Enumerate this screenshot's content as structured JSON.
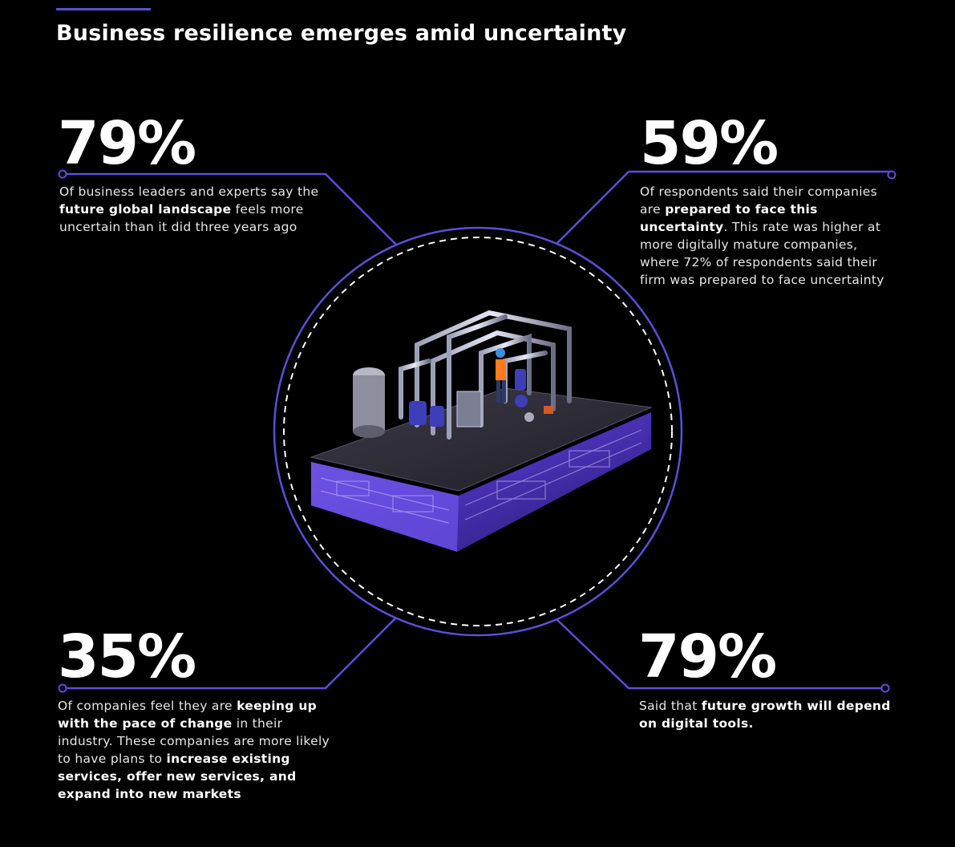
{
  "title": "Business resilience emerges amid uncertainty",
  "colors": {
    "accent": "#5b4fd6",
    "background": "#000000",
    "text": "#ffffff"
  },
  "stats": [
    {
      "value": "79%",
      "parts": [
        {
          "t": "Of business leaders and experts say the ",
          "b": false
        },
        {
          "t": "future global landscape",
          "b": true
        },
        {
          "t": " feels more uncertain than it did three years ago",
          "b": false
        }
      ]
    },
    {
      "value": "59%",
      "parts": [
        {
          "t": "Of respondents said their companies are ",
          "b": false
        },
        {
          "t": "prepared to face this uncertainty",
          "b": true
        },
        {
          "t": ". This rate was higher at more digitally mature companies, where 72% of respondents said their firm was prepared to face uncertainty",
          "b": false
        }
      ]
    },
    {
      "value": "35%",
      "parts": [
        {
          "t": "Of companies feel they are ",
          "b": false
        },
        {
          "t": "keeping up with the pace of change",
          "b": true
        },
        {
          "t": " in their industry. These companies are more likely to have plans to ",
          "b": false
        },
        {
          "t": "increase existing services, offer new services, and expand into new markets",
          "b": true
        }
      ]
    },
    {
      "value": "79%",
      "parts": [
        {
          "t": "Said that ",
          "b": false
        },
        {
          "t": "future growth will depend on digital tools.",
          "b": true
        }
      ]
    }
  ]
}
